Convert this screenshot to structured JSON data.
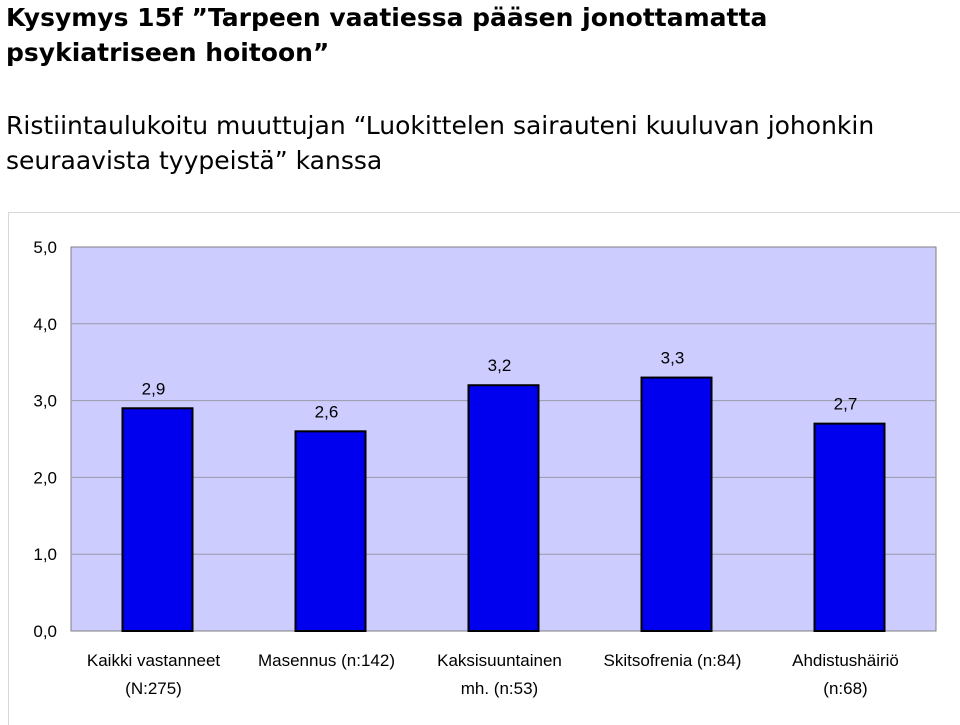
{
  "title": {
    "line1": "Kysymys 15f ”Tarpeen vaatiessa pääsen jonottamatta psykiatriseen hoitoon”",
    "line2": "Ristiintaulukoitu muuttujan “Luokittelen sairauteni kuuluvan johonkin seuraavista tyypeistä” kanssa"
  },
  "colors": {
    "plot_bg": "#ccccff",
    "bar_fill": "#0000ee",
    "bar_stroke": "#000000",
    "grid": "#9a9aa8"
  },
  "chart_data": {
    "type": "bar",
    "categories": [
      [
        "Kaikki vastanneet",
        "(N:275)"
      ],
      [
        "Masennus (n:142)"
      ],
      [
        "Kaksisuuntainen",
        "mh. (n:53)"
      ],
      [
        "Skitsofrenia (n:84)"
      ],
      [
        "Ahdistushäiriö",
        "(n:68)"
      ]
    ],
    "values": [
      2.9,
      2.6,
      3.2,
      3.3,
      2.7
    ],
    "value_labels": [
      "2,9",
      "2,6",
      "3,2",
      "3,3",
      "2,7"
    ],
    "yticks": [
      "0,0",
      "1,0",
      "2,0",
      "3,0",
      "4,0",
      "5,0"
    ],
    "ylim": [
      0,
      5
    ],
    "grid": true,
    "legend": "none",
    "xlabel": "",
    "ylabel": ""
  }
}
